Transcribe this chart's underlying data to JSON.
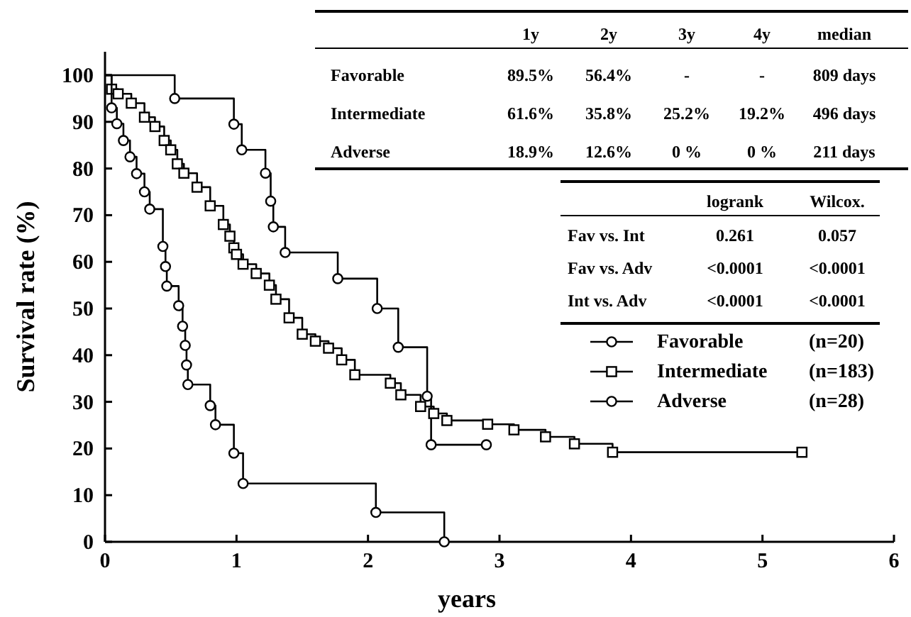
{
  "chart_data": {
    "type": "step",
    "xlabel": "years",
    "ylabel": "Survival rate (%)",
    "xlim": [
      0,
      6
    ],
    "ylim": [
      0,
      105
    ],
    "xticks": [
      0,
      1,
      2,
      3,
      4,
      5,
      6
    ],
    "yticks": [
      0,
      10,
      20,
      30,
      40,
      50,
      60,
      70,
      80,
      90,
      100
    ],
    "legend": "right",
    "line_style": "solid",
    "series": [
      {
        "name": "Favorable",
        "color": "#000000",
        "marker": "circle",
        "x": [
          0,
          0.53,
          0.98,
          1.04,
          1.22,
          1.26,
          1.28,
          1.37,
          1.77,
          2.07,
          2.23,
          2.45,
          2.48,
          2.9
        ],
        "values": [
          100,
          95,
          89.5,
          84,
          79,
          73,
          67.5,
          62,
          56.4,
          50,
          41.7,
          31.2,
          20.8,
          20.8
        ]
      },
      {
        "name": "Intermediate",
        "color": "#000000",
        "marker": "square",
        "x": [
          0,
          0.05,
          0.1,
          0.2,
          0.3,
          0.38,
          0.45,
          0.5,
          0.55,
          0.6,
          0.7,
          0.8,
          0.9,
          0.95,
          0.98,
          1.0,
          1.05,
          1.15,
          1.25,
          1.3,
          1.4,
          1.5,
          1.6,
          1.7,
          1.8,
          1.9,
          2.17,
          2.25,
          2.4,
          2.5,
          2.6,
          2.91,
          3.11,
          3.35,
          3.57,
          3.86,
          5.3
        ],
        "values": [
          100,
          97,
          96,
          94,
          91,
          89,
          86,
          84,
          81,
          79,
          76,
          72,
          68,
          65.5,
          63,
          61.6,
          59.5,
          57.5,
          55,
          52,
          48,
          44.5,
          43,
          41.5,
          39,
          35.8,
          34,
          31.5,
          29,
          27.5,
          26,
          25.2,
          24,
          22.5,
          21,
          19.2,
          19.2
        ]
      },
      {
        "name": "Adverse",
        "color": "#000000",
        "marker": "circle",
        "x": [
          0,
          0.05,
          0.09,
          0.14,
          0.19,
          0.24,
          0.3,
          0.34,
          0.44,
          0.46,
          0.47,
          0.56,
          0.59,
          0.61,
          0.62,
          0.63,
          0.8,
          0.84,
          0.98,
          1.05,
          2.06,
          2.58
        ],
        "values": [
          100,
          93,
          89.6,
          86,
          82.5,
          78.9,
          75,
          71.3,
          63.3,
          59,
          54.8,
          50.6,
          46.2,
          42.1,
          37.9,
          33.7,
          29.2,
          25.1,
          19,
          12.5,
          6.3,
          0
        ]
      }
    ],
    "annotations": [
      "1y",
      "2y",
      "3y",
      "4y",
      "median",
      "Favorable",
      "89.5%",
      "56.4%",
      "-",
      "-",
      "809 days",
      "Intermediate",
      "61.6%",
      "35.8%",
      "25.2%",
      "19.2%",
      "496 days",
      "Adverse",
      "18.9%",
      "12.6%",
      "0 %",
      "0 %",
      "211 days",
      "logrank",
      "Wilcox.",
      "Fav vs. Int",
      "0.261",
      "0.057",
      "Fav vs. Adv",
      "<0.0001",
      "<0.0001",
      "Int vs. Adv",
      "<0.0001",
      "<0.0001",
      "(n=20)",
      "(n=183)",
      "(n=28)"
    ]
  }
}
